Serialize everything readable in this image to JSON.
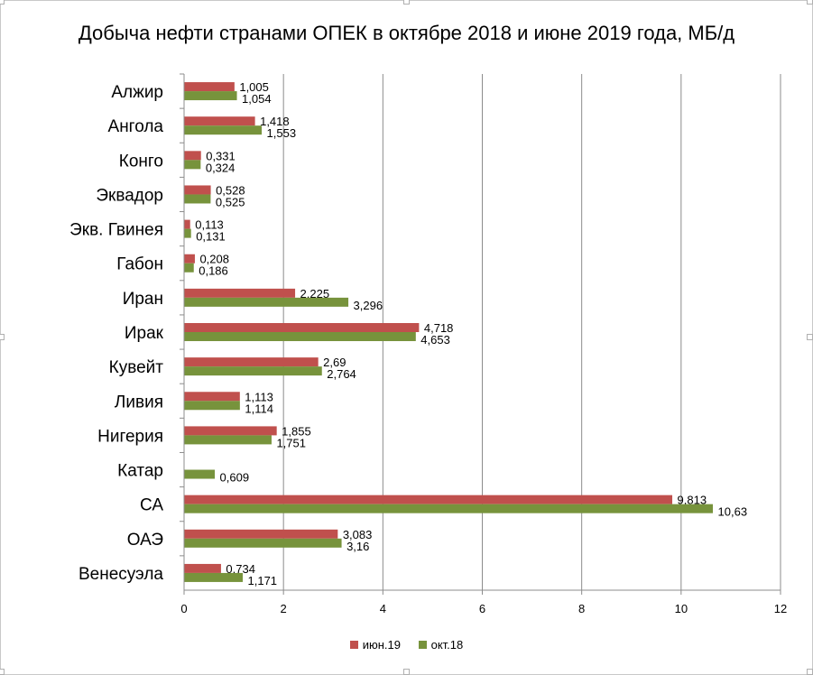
{
  "chart_data": {
    "type": "bar",
    "orientation": "horizontal",
    "title": "Добыча нефти странами ОПЕК в октябре 2018 и июне 2019 года, МБ/д",
    "categories": [
      "Алжир",
      "Ангола",
      "Конго",
      "Эквадор",
      "Экв. Гвинея",
      "Габон",
      "Иран",
      "Ирак",
      "Кувейт",
      "Ливия",
      "Нигерия",
      "Катар",
      "СА",
      "ОАЭ",
      "Венесуэла"
    ],
    "series": [
      {
        "name": "июн.19",
        "color": "#c0504d",
        "values": [
          1.005,
          1.418,
          0.331,
          0.528,
          0.113,
          0.208,
          2.225,
          4.718,
          2.69,
          1.113,
          1.855,
          null,
          9.813,
          3.083,
          0.734
        ],
        "labels": [
          "1,005",
          "1,418",
          "0,331",
          "0,528",
          "0,113",
          "0,208",
          "2,225",
          "4,718",
          "2,69",
          "1,113",
          "1,855",
          "",
          "9,813",
          "3,083",
          "0,734"
        ]
      },
      {
        "name": "окт.18",
        "color": "#77933c",
        "values": [
          1.054,
          1.553,
          0.324,
          0.525,
          0.131,
          0.186,
          3.296,
          4.653,
          2.764,
          1.114,
          1.751,
          0.609,
          10.63,
          3.16,
          1.171
        ],
        "labels": [
          "1,054",
          "1,553",
          "0,324",
          "0,525",
          "0,131",
          "0,186",
          "3,296",
          "4,653",
          "2,764",
          "1,114",
          "1,751",
          "0,609",
          "10,63",
          "3,16",
          "1,171"
        ]
      }
    ],
    "xlim": [
      0,
      12
    ],
    "xticks": [
      "0",
      "2",
      "4",
      "6",
      "8",
      "10",
      "12"
    ],
    "grid": true,
    "legend_position": "bottom"
  }
}
